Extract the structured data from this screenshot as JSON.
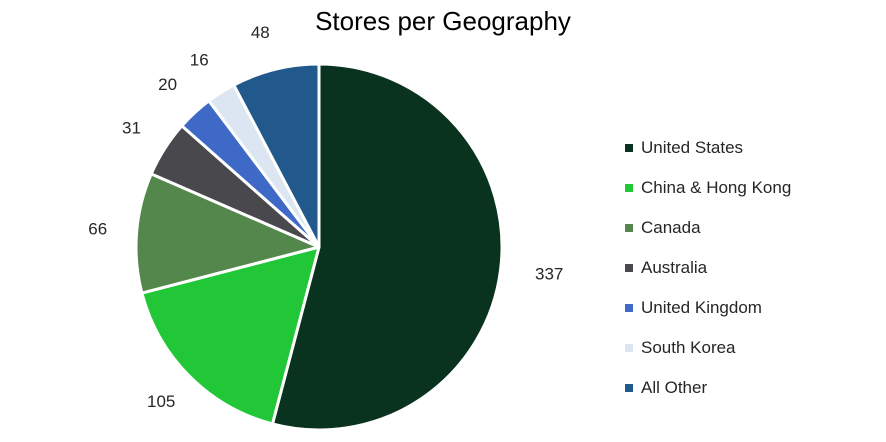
{
  "chart_data": {
    "type": "pie",
    "title": "Stores per Geography",
    "categories": [
      "United States",
      "China & Hong Kong",
      "Canada",
      "Australia",
      "United Kingdom",
      "South Korea",
      "All Other"
    ],
    "values": [
      337,
      105,
      66,
      31,
      20,
      16,
      48
    ],
    "colors": [
      "#09331F",
      "#22C738",
      "#54874B",
      "#48484D",
      "#3F69C6",
      "#DCE6F3",
      "#22598D"
    ],
    "data_labels": [
      "337",
      "105",
      "66",
      "31",
      "20",
      "16",
      "48"
    ],
    "legend_placement": "right",
    "start_angle": "12 o'clock",
    "direction": "clockwise"
  }
}
